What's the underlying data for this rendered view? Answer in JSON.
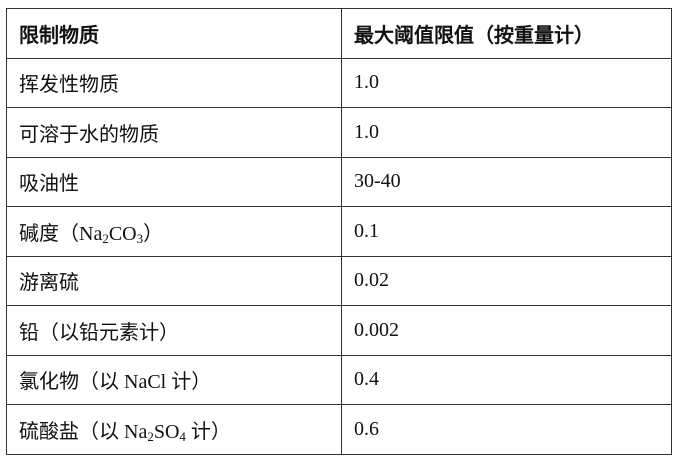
{
  "table": {
    "headers": [
      "限制物质",
      "最大阈值限值（按重量计）"
    ],
    "rows": [
      {
        "substance": [
          "挥发性物质"
        ],
        "limit": "1.0"
      },
      {
        "substance": [
          "可溶于水的物质"
        ],
        "limit": "1.0"
      },
      {
        "substance": [
          "吸油性"
        ],
        "limit": "30-40"
      },
      {
        "substance": [
          "碱度（Na",
          "2",
          "CO",
          "3",
          "）"
        ],
        "limit": "0.1"
      },
      {
        "substance": [
          "游离硫"
        ],
        "limit": "0.02"
      },
      {
        "substance": [
          "铅（以铅元素计）"
        ],
        "limit": "0.002"
      },
      {
        "substance": [
          "氯化物（以 NaCl 计）"
        ],
        "limit": "0.4"
      },
      {
        "substance": [
          "硫酸盐（以 Na",
          "2",
          "SO",
          "4",
          " 计）"
        ],
        "limit": "0.6"
      }
    ]
  }
}
